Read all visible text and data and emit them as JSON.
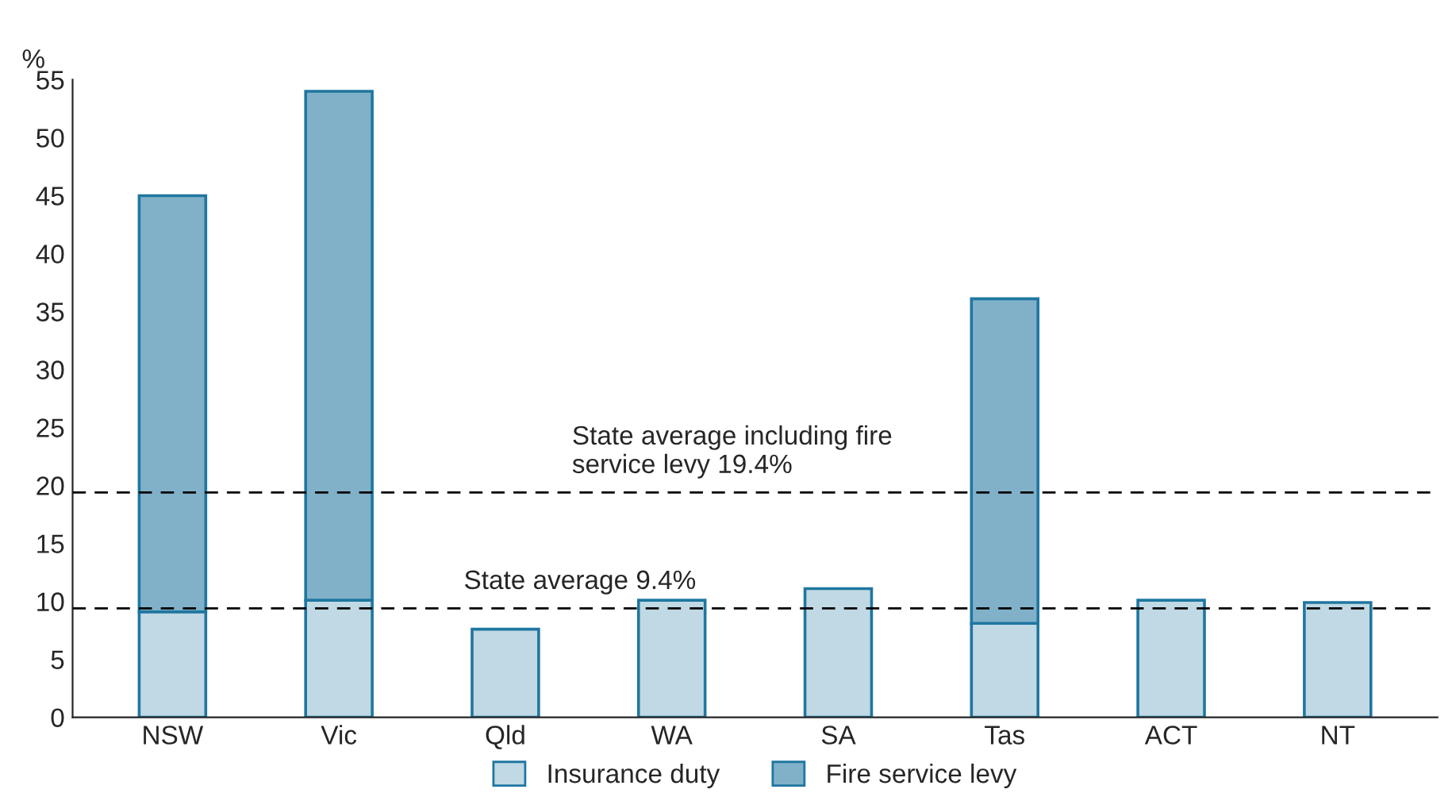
{
  "chart_data": {
    "type": "bar",
    "stacked": true,
    "ylabel": "%",
    "categories": [
      "NSW",
      "Vic",
      "Qld",
      "WA",
      "SA",
      "Tas",
      "ACT",
      "NT"
    ],
    "series": [
      {
        "name": "Insurance duty",
        "color": "#c0d9e4",
        "values": [
          9.1,
          10.1,
          7.6,
          10.1,
          11.1,
          8.1,
          10.1,
          9.9
        ]
      },
      {
        "name": "Fire service levy",
        "color": "#80b1c9",
        "values": [
          35.9,
          43.9,
          null,
          null,
          null,
          28.0,
          null,
          null
        ]
      }
    ],
    "ylim": [
      0,
      55
    ],
    "yticks": [
      0,
      5,
      10,
      15,
      20,
      25,
      30,
      35,
      40,
      45,
      50,
      55
    ],
    "ref_lines": [
      {
        "axis": "y",
        "value": 9.4,
        "label": "State average 9.4%",
        "line_style": "dashed"
      },
      {
        "axis": "y",
        "value": 19.4,
        "label": "State average including fire\nservice levy 19.4%",
        "line_style": "dashed"
      }
    ],
    "grid": false,
    "legend": "bottom"
  }
}
